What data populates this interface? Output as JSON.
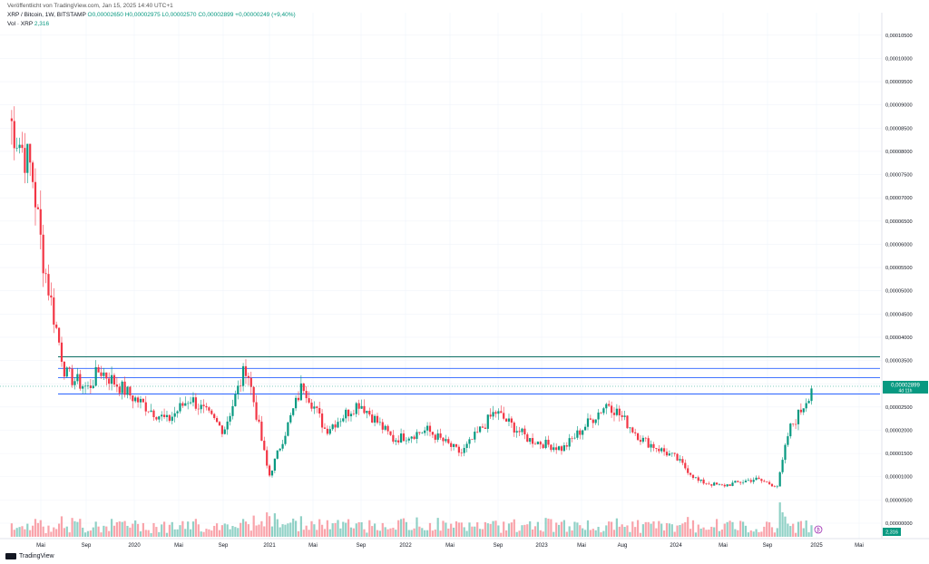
{
  "header": {
    "published": "Veröffentlicht von TradingView.com, Jan 15, 2025 14:40 UTC+1",
    "symbol": "XRP / Bitcoin, 1W, BITSTAMP",
    "ohlc": "O0,00002650 H0,00002975 L0,00002570 C0,00002899 +0,00000249 (+9,40%)",
    "volume_label": "Vol · XRP",
    "volume_value": "2,316"
  },
  "price_axis": {
    "ticks": [
      "0,00010500",
      "0,00010000",
      "0,00009500",
      "0,00009000",
      "0,00008500",
      "0,00008000",
      "0,00007500",
      "0,00007000",
      "0,00006500",
      "0,00006000",
      "0,00005500",
      "0,00005000",
      "0,00004500",
      "0,00004000",
      "0,00003500",
      "0,00003000",
      "0,00002500",
      "0,00002000",
      "0,00001500",
      "0,00001000",
      "0,00000500",
      "0,00000000"
    ],
    "current_price": "0,00002899",
    "countdown": "4d 11h",
    "volume_badge": "2,316"
  },
  "time_axis": {
    "labels": [
      "Mai",
      "Sep",
      "2020",
      "Mai",
      "Sep",
      "2021",
      "Mai",
      "Sep",
      "2022",
      "Mai",
      "Sep",
      "2023",
      "Mai",
      "Aug",
      "2024",
      "Mai",
      "Sep",
      "2025",
      "Mai"
    ]
  },
  "colors": {
    "up": "#089981",
    "down": "#f23645",
    "level_blue": "#2962ff",
    "level_teal": "#0b6e63"
  },
  "branding": {
    "logo_text": "TradingView"
  },
  "chart_data": {
    "type": "candlestick",
    "interval": "1W",
    "y_range": [
      0,
      0.0001075
    ],
    "current_price": 2.899e-05,
    "horizontal_levels": [
      3.58e-05,
      3.33e-05,
      3.13e-05,
      2.78e-05
    ],
    "anchor_closes": [
      {
        "date": "2019-02",
        "close": 8.72e-05
      },
      {
        "date": "2019-04",
        "close": 7.6e-05
      },
      {
        "date": "2019-05",
        "close": 5.7e-05
      },
      {
        "date": "2019-06",
        "close": 4.4e-05
      },
      {
        "date": "2019-07",
        "close": 3.2e-05
      },
      {
        "date": "2019-09",
        "close": 2.9e-05
      },
      {
        "date": "2019-10",
        "close": 3.3e-05
      },
      {
        "date": "2020-01",
        "close": 2.7e-05
      },
      {
        "date": "2020-04",
        "close": 2.2e-05
      },
      {
        "date": "2020-06",
        "close": 2.7e-05
      },
      {
        "date": "2020-09",
        "close": 2e-05
      },
      {
        "date": "2020-11",
        "close": 3.4e-05
      },
      {
        "date": "2021-01",
        "close": 1e-05
      },
      {
        "date": "2021-04",
        "close": 3e-05
      },
      {
        "date": "2021-06",
        "close": 2e-05
      },
      {
        "date": "2021-09",
        "close": 2.6e-05
      },
      {
        "date": "2021-12",
        "close": 1.8e-05
      },
      {
        "date": "2022-03",
        "close": 2e-05
      },
      {
        "date": "2022-06",
        "close": 1.5e-05
      },
      {
        "date": "2022-09",
        "close": 2.4e-05
      },
      {
        "date": "2022-12",
        "close": 1.8e-05
      },
      {
        "date": "2023-03",
        "close": 1.6e-05
      },
      {
        "date": "2023-07",
        "close": 2.6e-05
      },
      {
        "date": "2023-10",
        "close": 1.8e-05
      },
      {
        "date": "2024-01",
        "close": 1.4e-05
      },
      {
        "date": "2024-03",
        "close": 9e-06
      },
      {
        "date": "2024-05",
        "close": 8e-06
      },
      {
        "date": "2024-08",
        "close": 9.5e-06
      },
      {
        "date": "2024-10",
        "close": 8e-06
      },
      {
        "date": "2024-11",
        "close": 2e-05
      },
      {
        "date": "2024-12",
        "close": 2.4e-05
      },
      {
        "date": "2025-01",
        "close": 2.899e-05
      }
    ]
  }
}
